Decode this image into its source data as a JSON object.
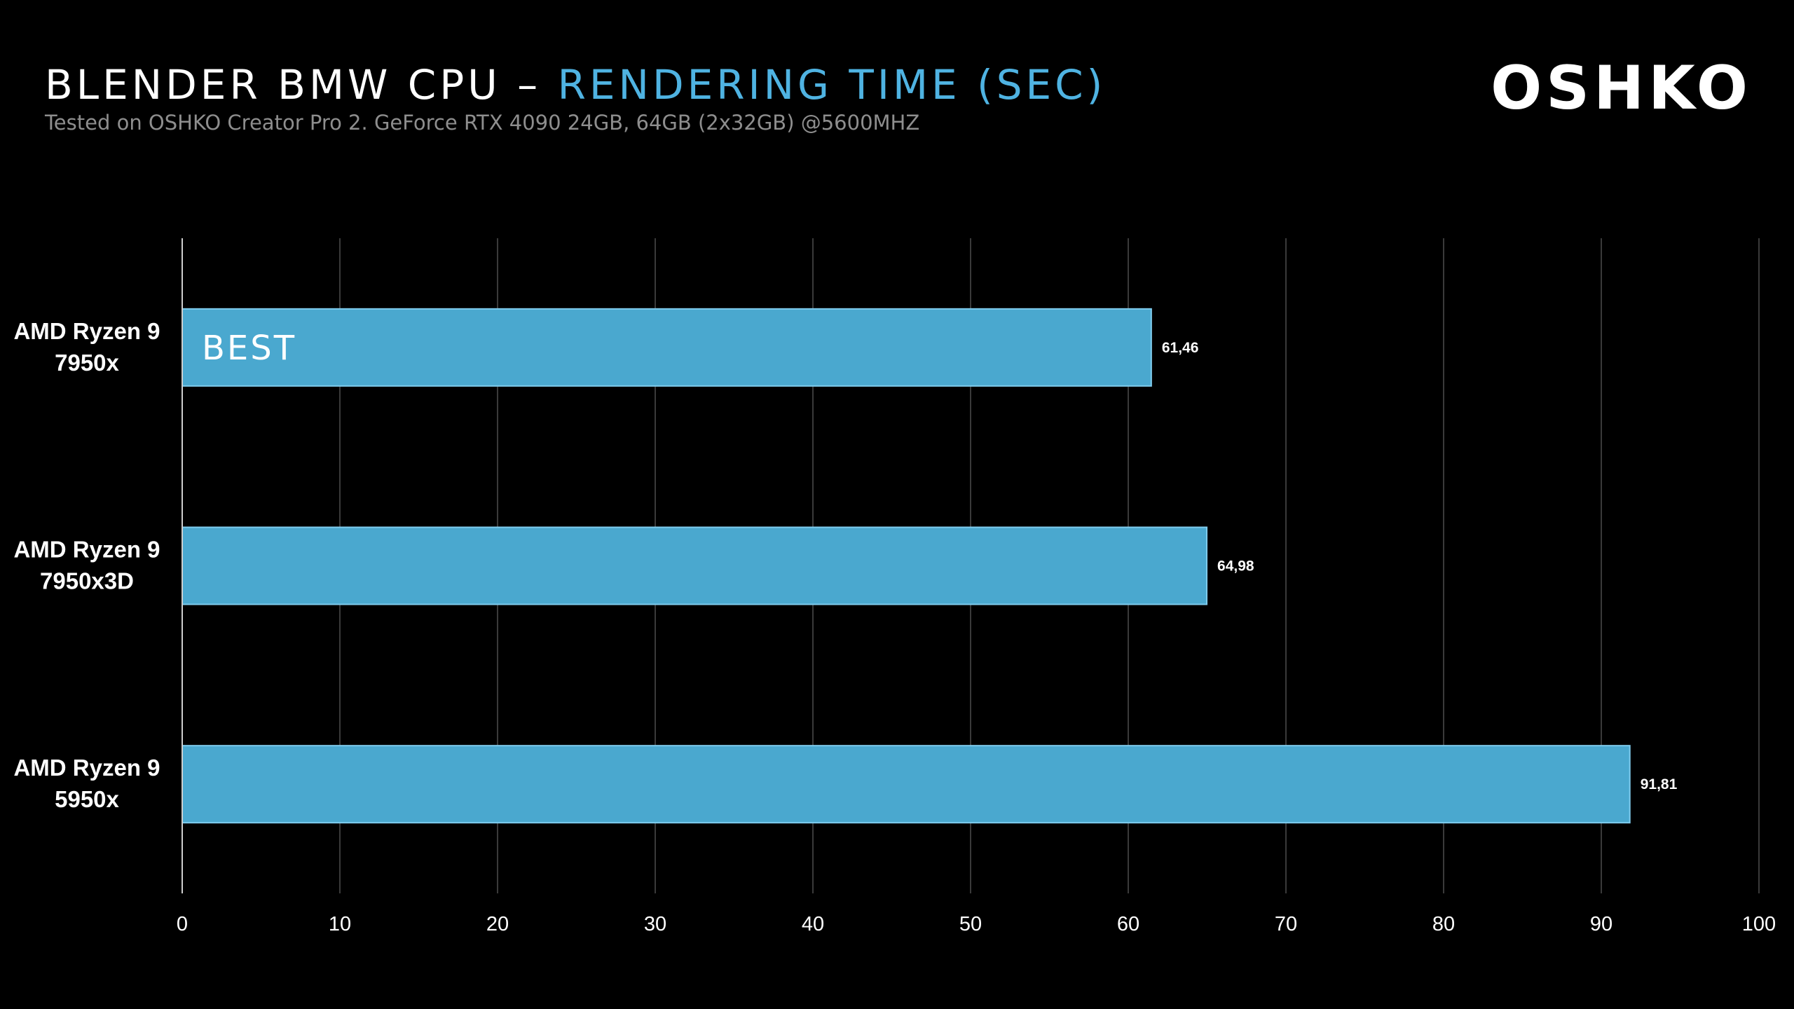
{
  "header": {
    "title_main": "BLENDER BMW CPU – ",
    "title_accent": "RENDERING TIME (SEC)",
    "subtitle": "Tested on OSHKO Creator Pro 2. GeForce RTX 4090 24GB, 64GB (2x32GB) @5600MHZ",
    "logo": "OSHKO"
  },
  "colors": {
    "background": "#000000",
    "bar_fill": "#4AA8CF",
    "bar_stroke": "#7FCCEE",
    "accent": "#4FB3E2",
    "grid": "#3a3a3a",
    "axis": "#cfcfcf"
  },
  "chart_data": {
    "type": "bar",
    "orientation": "horizontal",
    "categories": [
      [
        "AMD Ryzen 9",
        "7950x"
      ],
      [
        "AMD Ryzen 9",
        "7950x3D"
      ],
      [
        "AMD Ryzen 9",
        "5950x"
      ]
    ],
    "values": [
      61.46,
      64.98,
      91.81
    ],
    "data_labels": [
      "61,46",
      "64,98",
      "91,81"
    ],
    "bar_badges": [
      "BEST",
      "",
      ""
    ],
    "xlim": [
      0,
      100
    ],
    "xticks": [
      0,
      10,
      20,
      30,
      40,
      50,
      60,
      70,
      80,
      90,
      100
    ],
    "grid": true,
    "legend": "none"
  }
}
